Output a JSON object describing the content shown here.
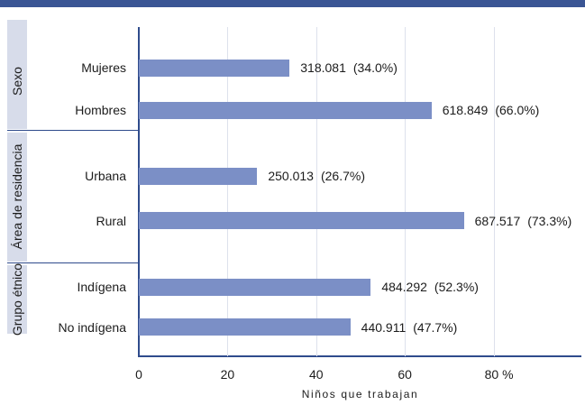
{
  "chart_data": {
    "type": "bar",
    "horizontal": true,
    "xlabel": "Niños que trabajan",
    "xlim": [
      0,
      100
    ],
    "x_ticks": [
      0,
      20,
      40,
      60,
      80
    ],
    "x_tick_labels": [
      "0",
      "20",
      "40",
      "60",
      "80 %"
    ],
    "grid": true,
    "legend": false,
    "groups": [
      {
        "name": "Sexo",
        "categories": [
          {
            "label": "Mujeres",
            "value": 34.0,
            "count": "318.081",
            "pct": "(34.0%)"
          },
          {
            "label": "Hombres",
            "value": 66.0,
            "count": "618.849",
            "pct": "(66.0%)"
          }
        ]
      },
      {
        "name": "Área de residencia",
        "categories": [
          {
            "label": "Urbana",
            "value": 26.7,
            "count": "250.013",
            "pct": "(26.7%)"
          },
          {
            "label": "Rural",
            "value": 73.3,
            "count": "687.517",
            "pct": "(73.3%)"
          }
        ]
      },
      {
        "name": "Grupo étnico",
        "categories": [
          {
            "label": "Indígena",
            "value": 52.3,
            "count": "484.292",
            "pct": "(52.3%)"
          },
          {
            "label": "No indígena",
            "value": 47.7,
            "count": "440.911",
            "pct": "(47.7%)"
          }
        ]
      }
    ]
  },
  "colors": {
    "header": "#3a5594",
    "bar": "#7b8fc6",
    "axis": "#2f4b8c",
    "band": "#d7dcea",
    "grid": "#dde1ec"
  }
}
